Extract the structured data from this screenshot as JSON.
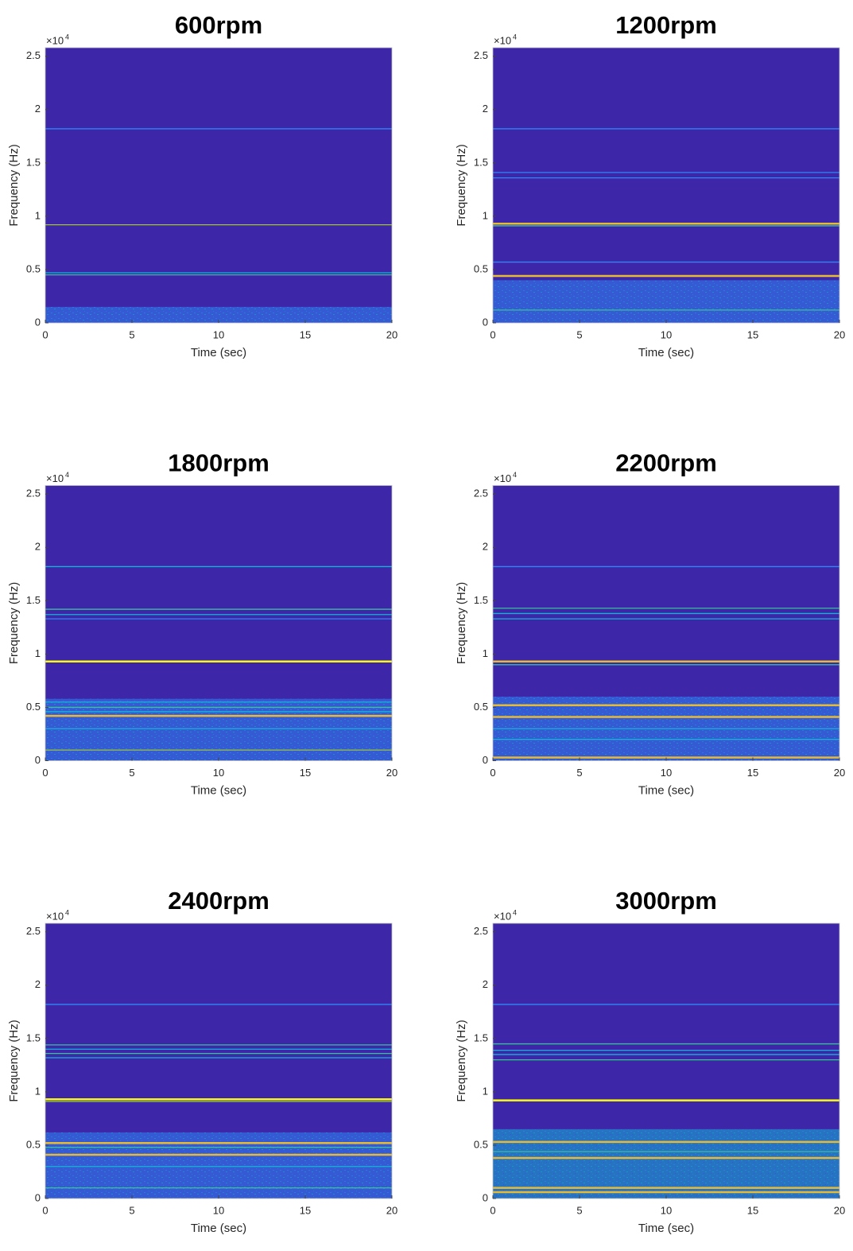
{
  "colormap": [
    "#3e26a8",
    "#4743f2",
    "#2e86f5",
    "#13b3d6",
    "#38c09a",
    "#9bc537",
    "#e7ba36",
    "#f9fb0e"
  ],
  "chart_data": [
    {
      "type": "spectrogram",
      "title": "600rpm",
      "xlabel": "Time (sec)",
      "ylabel": "Frequency (Hz)",
      "y_scale_label": "×10",
      "y_scale_exponent": "4",
      "xlim": [
        0,
        20
      ],
      "xticks": [
        0,
        5,
        10,
        15,
        20
      ],
      "ylim": [
        0,
        25800
      ],
      "yticks": [
        0,
        {
          "value": 5000,
          "label": "0.5"
        },
        {
          "value": 10000,
          "label": "1"
        },
        {
          "value": 15000,
          "label": "1.5"
        },
        {
          "value": 20000,
          "label": "2"
        },
        {
          "value": 25000,
          "label": "2.5"
        }
      ],
      "noise": {
        "top": 1500,
        "level": 0.25
      },
      "lines": [
        {
          "frequency": 18200,
          "level": 0.3
        },
        {
          "frequency": 9200,
          "level": 0.7
        },
        {
          "frequency": 4700,
          "level": 0.4
        },
        {
          "frequency": 4500,
          "level": 0.6
        }
      ]
    },
    {
      "type": "spectrogram",
      "title": "1200rpm",
      "xlabel": "Time (sec)",
      "ylabel": "Frequency (Hz)",
      "y_scale_label": "×10",
      "y_scale_exponent": "4",
      "xlim": [
        0,
        20
      ],
      "xticks": [
        0,
        5,
        10,
        15,
        20
      ],
      "ylim": [
        0,
        25800
      ],
      "yticks": [
        0,
        {
          "value": 5000,
          "label": "0.5"
        },
        {
          "value": 10000,
          "label": "1"
        },
        {
          "value": 15000,
          "label": "1.5"
        },
        {
          "value": 20000,
          "label": "2"
        },
        {
          "value": 25000,
          "label": "2.5"
        }
      ],
      "noise": {
        "top": 4000,
        "level": 0.25
      },
      "lines": [
        {
          "frequency": 18200,
          "level": 0.35
        },
        {
          "frequency": 14100,
          "level": 0.3
        },
        {
          "frequency": 13600,
          "level": 0.3
        },
        {
          "frequency": 9300,
          "level": 0.85
        },
        {
          "frequency": 9100,
          "level": 0.5
        },
        {
          "frequency": 5700,
          "level": 0.35
        },
        {
          "frequency": 4400,
          "level": 0.9
        },
        {
          "frequency": 1200,
          "level": 0.5
        }
      ]
    },
    {
      "type": "spectrogram",
      "title": "1800rpm",
      "xlabel": "Time (sec)",
      "ylabel": "Frequency (Hz)",
      "y_scale_label": "×10",
      "y_scale_exponent": "4",
      "xlim": [
        0,
        20
      ],
      "xticks": [
        0,
        5,
        10,
        15,
        20
      ],
      "ylim": [
        0,
        25800
      ],
      "yticks": [
        0,
        {
          "value": 5000,
          "label": "0.5"
        },
        {
          "value": 10000,
          "label": "1"
        },
        {
          "value": 15000,
          "label": "1.5"
        },
        {
          "value": 20000,
          "label": "2"
        },
        {
          "value": 25000,
          "label": "2.5"
        }
      ],
      "noise": {
        "top": 5800,
        "level": 0.3
      },
      "lines": [
        {
          "frequency": 18200,
          "level": 0.4
        },
        {
          "frequency": 14200,
          "level": 0.5
        },
        {
          "frequency": 13700,
          "level": 0.4
        },
        {
          "frequency": 13300,
          "level": 0.35
        },
        {
          "frequency": 9300,
          "level": 0.95
        },
        {
          "frequency": 5500,
          "level": 0.4
        },
        {
          "frequency": 5000,
          "level": 0.5
        },
        {
          "frequency": 4600,
          "level": 0.45
        },
        {
          "frequency": 4200,
          "level": 0.9
        },
        {
          "frequency": 3000,
          "level": 0.4
        },
        {
          "frequency": 1000,
          "level": 0.7
        }
      ]
    },
    {
      "type": "spectrogram",
      "title": "2200rpm",
      "xlabel": "Time (sec)",
      "ylabel": "Frequency (Hz)",
      "y_scale_label": "×10",
      "y_scale_exponent": "4",
      "xlim": [
        0,
        20
      ],
      "xticks": [
        0,
        5,
        10,
        15,
        20
      ],
      "ylim": [
        0,
        25800
      ],
      "yticks": [
        0,
        {
          "value": 5000,
          "label": "0.5"
        },
        {
          "value": 10000,
          "label": "1"
        },
        {
          "value": 15000,
          "label": "1.5"
        },
        {
          "value": 20000,
          "label": "2"
        },
        {
          "value": 25000,
          "label": "2.5"
        }
      ],
      "noise": {
        "top": 6000,
        "level": 0.35
      },
      "lines": [
        {
          "frequency": 18200,
          "level": 0.35
        },
        {
          "frequency": 14300,
          "level": 0.55
        },
        {
          "frequency": 13800,
          "level": 0.45
        },
        {
          "frequency": 13300,
          "level": 0.4
        },
        {
          "frequency": 9300,
          "level": 0.9
        },
        {
          "frequency": 9000,
          "level": 0.5
        },
        {
          "frequency": 5200,
          "level": 0.85
        },
        {
          "frequency": 4100,
          "level": 0.8
        },
        {
          "frequency": 3000,
          "level": 0.45
        },
        {
          "frequency": 2000,
          "level": 0.4
        },
        {
          "frequency": 300,
          "level": 0.8
        }
      ]
    },
    {
      "type": "spectrogram",
      "title": "2400rpm",
      "xlabel": "Time (sec)",
      "ylabel": "Frequency (Hz)",
      "y_scale_label": "×10",
      "y_scale_exponent": "4",
      "xlim": [
        0,
        20
      ],
      "xticks": [
        0,
        5,
        10,
        15,
        20
      ],
      "ylim": [
        0,
        25800
      ],
      "yticks": [
        0,
        {
          "value": 5000,
          "label": "0.5"
        },
        {
          "value": 10000,
          "label": "1"
        },
        {
          "value": 15000,
          "label": "1.5"
        },
        {
          "value": 20000,
          "label": "2"
        },
        {
          "value": 25000,
          "label": "2.5"
        }
      ],
      "noise": {
        "top": 6200,
        "level": 0.35
      },
      "lines": [
        {
          "frequency": 18200,
          "level": 0.3
        },
        {
          "frequency": 14400,
          "level": 0.55
        },
        {
          "frequency": 14000,
          "level": 0.45
        },
        {
          "frequency": 13600,
          "level": 0.5
        },
        {
          "frequency": 13200,
          "level": 0.45
        },
        {
          "frequency": 9300,
          "level": 0.95
        },
        {
          "frequency": 9100,
          "level": 0.7
        },
        {
          "frequency": 5200,
          "level": 0.8
        },
        {
          "frequency": 4800,
          "level": 0.5
        },
        {
          "frequency": 4100,
          "level": 0.9
        },
        {
          "frequency": 3000,
          "level": 0.4
        },
        {
          "frequency": 1000,
          "level": 0.6
        }
      ]
    },
    {
      "type": "spectrogram",
      "title": "3000rpm",
      "xlabel": "Time (sec)",
      "ylabel": "Frequency (Hz)",
      "y_scale_label": "×10",
      "y_scale_exponent": "4",
      "xlim": [
        0,
        20
      ],
      "xticks": [
        0,
        5,
        10,
        15,
        20
      ],
      "ylim": [
        0,
        25800
      ],
      "yticks": [
        0,
        {
          "value": 5000,
          "label": "0.5"
        },
        {
          "value": 10000,
          "label": "1"
        },
        {
          "value": 15000,
          "label": "1.5"
        },
        {
          "value": 20000,
          "label": "2"
        },
        {
          "value": 25000,
          "label": "2.5"
        }
      ],
      "noise": {
        "top": 6500,
        "level": 0.4
      },
      "lines": [
        {
          "frequency": 18200,
          "level": 0.3
        },
        {
          "frequency": 14500,
          "level": 0.5
        },
        {
          "frequency": 13900,
          "level": 0.45
        },
        {
          "frequency": 13500,
          "level": 0.45
        },
        {
          "frequency": 13000,
          "level": 0.5
        },
        {
          "frequency": 9200,
          "level": 0.95
        },
        {
          "frequency": 5300,
          "level": 0.9
        },
        {
          "frequency": 4400,
          "level": 0.6
        },
        {
          "frequency": 3800,
          "level": 0.8
        },
        {
          "frequency": 1000,
          "level": 0.9
        },
        {
          "frequency": 600,
          "level": 0.8
        }
      ]
    }
  ]
}
